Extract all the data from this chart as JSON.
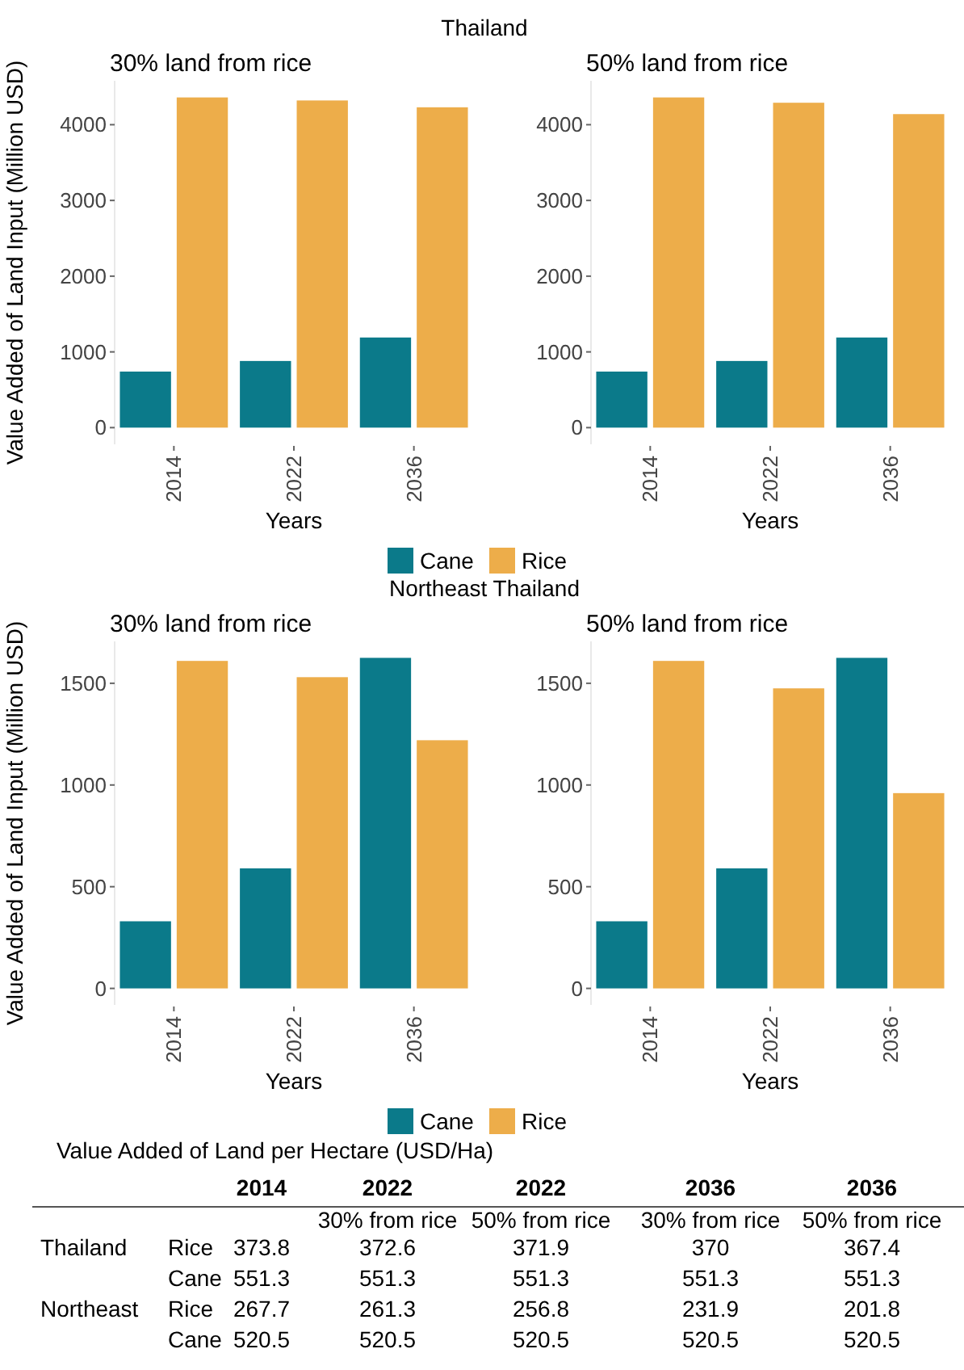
{
  "chart_data": [
    {
      "type": "bar",
      "title": "30% land from rice",
      "annotations": [
        "Thailand"
      ],
      "xlabel": "Years",
      "ylabel": "Value Added of Land Input (Million USD)",
      "categories": [
        "2014",
        "2022",
        "2036"
      ],
      "series": [
        {
          "name": "Cane",
          "color": "#0b7a8a",
          "values": [
            740,
            880,
            1190
          ]
        },
        {
          "name": "Rice",
          "color": "#edad4a",
          "values": [
            4360,
            4320,
            4230
          ]
        }
      ],
      "ylim": [
        -220,
        4580
      ],
      "yticks": [
        0,
        1000,
        2000,
        3000,
        4000
      ],
      "legend": "bottom"
    },
    {
      "type": "bar",
      "title": "50% land from rice",
      "xlabel": "Years",
      "categories": [
        "2014",
        "2022",
        "2036"
      ],
      "series": [
        {
          "color": "#0b7a8a",
          "values": [
            740,
            880,
            1190
          ]
        },
        {
          "color": "#edad4a",
          "values": [
            4360,
            4290,
            4140
          ]
        }
      ],
      "ylim": [
        -220,
        4580
      ],
      "yticks": [
        0,
        1000,
        2000,
        3000,
        4000
      ]
    },
    {
      "type": "bar",
      "title": "30% land from rice",
      "annotations": [
        "Northeast Thailand"
      ],
      "xlabel": "Years",
      "ylabel": "Value Added of Land Input (Million USD)",
      "categories": [
        "2014",
        "2022",
        "2036"
      ],
      "series": [
        {
          "name": "Cane",
          "color": "#0b7a8a",
          "values": [
            330,
            590,
            1625
          ]
        },
        {
          "name": "Rice",
          "color": "#edad4a",
          "values": [
            1610,
            1530,
            1220
          ]
        }
      ],
      "ylim": [
        -81,
        1706
      ],
      "yticks": [
        0,
        500,
        1000,
        1500
      ],
      "legend": "bottom"
    },
    {
      "type": "bar",
      "title": "50% land from rice",
      "xlabel": "Years",
      "categories": [
        "2014",
        "2022",
        "2036"
      ],
      "series": [
        {
          "color": "#0b7a8a",
          "values": [
            330,
            590,
            1625
          ]
        },
        {
          "color": "#edad4a",
          "values": [
            1610,
            1475,
            960
          ]
        }
      ],
      "ylim": [
        -81,
        1706
      ],
      "yticks": [
        0,
        500,
        1000,
        1500
      ]
    },
    {
      "type": "heatmap",
      "data_labels": true,
      "title": "Value Added of Land per Hectare (USD/Ha)",
      "categories": [
        "2014",
        "2022",
        "2022",
        "2036",
        "2036"
      ],
      "annotations": [
        null,
        "30% from rice",
        "50% from rice",
        "30% from rice",
        "50% from rice"
      ],
      "y_categories": [
        "Thailand",
        null,
        "Northeast",
        null
      ],
      "y2_categories": [
        "Rice",
        "Cane",
        "Rice",
        "Cane"
      ],
      "cells": [
        [
          373.8,
          372.6,
          371.9,
          370,
          367.4
        ],
        [
          551.3,
          551.3,
          551.3,
          551.3,
          551.3
        ],
        [
          267.7,
          261.3,
          256.8,
          231.9,
          201.8
        ],
        [
          520.5,
          520.5,
          520.5,
          520.5,
          520.5
        ]
      ]
    }
  ]
}
